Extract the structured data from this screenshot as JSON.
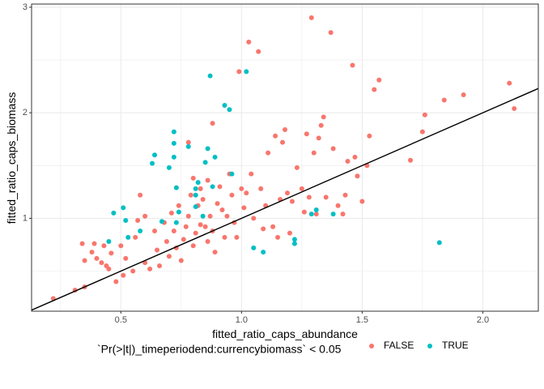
{
  "chart_data": {
    "type": "scatter",
    "xlabel": "fitted_ratio_caps_abundance",
    "ylabel": "fitted_ratio_caps_biomass",
    "xlim": [
      0.13,
      2.23
    ],
    "ylim": [
      0.12,
      3.03
    ],
    "x_ticks": [
      0.5,
      1.0,
      1.5,
      2.0
    ],
    "x_tick_labels": [
      "0.5",
      "1.0",
      "1.5",
      "2.0"
    ],
    "y_ticks": [
      1,
      2,
      3
    ],
    "y_tick_labels": [
      "1",
      "2",
      "3"
    ],
    "grid": true,
    "legend": {
      "title": "`Pr(>|t|)_timeperiodend:currencybiomass` < 0.05",
      "placement": "bottom",
      "entries": [
        {
          "label": "FALSE",
          "color": "#F8766D"
        },
        {
          "label": "TRUE",
          "color": "#00BFC4"
        }
      ]
    },
    "reference_line": {
      "intercept": 0,
      "slope": 1
    },
    "series": [
      {
        "name": "FALSE",
        "color": "#F8766D",
        "points": [
          [
            0.22,
            0.24
          ],
          [
            0.31,
            0.32
          ],
          [
            0.35,
            0.35
          ],
          [
            0.34,
            0.76
          ],
          [
            0.39,
            0.76
          ],
          [
            0.35,
            0.6
          ],
          [
            0.38,
            0.68
          ],
          [
            0.4,
            0.62
          ],
          [
            0.42,
            0.58
          ],
          [
            0.44,
            0.55
          ],
          [
            0.45,
            0.52
          ],
          [
            0.43,
            0.74
          ],
          [
            0.46,
            0.67
          ],
          [
            0.48,
            0.4
          ],
          [
            0.5,
            0.74
          ],
          [
            0.51,
            0.46
          ],
          [
            0.52,
            0.62
          ],
          [
            0.55,
            0.5
          ],
          [
            0.56,
            0.82
          ],
          [
            0.57,
            0.98
          ],
          [
            0.58,
            1.22
          ],
          [
            0.6,
            0.58
          ],
          [
            0.6,
            1.02
          ],
          [
            0.62,
            0.52
          ],
          [
            0.64,
            0.88
          ],
          [
            0.65,
            0.7
          ],
          [
            0.66,
            0.55
          ],
          [
            0.68,
            0.96
          ],
          [
            0.69,
            0.78
          ],
          [
            0.7,
            0.64
          ],
          [
            0.71,
            1.05
          ],
          [
            0.72,
            0.88
          ],
          [
            0.73,
            0.72
          ],
          [
            0.74,
            1.12
          ],
          [
            0.75,
            0.6
          ],
          [
            0.77,
            0.92
          ],
          [
            0.78,
            1.02
          ],
          [
            0.79,
            1.22
          ],
          [
            0.8,
            0.74
          ],
          [
            0.81,
            0.86
          ],
          [
            0.82,
            1.12
          ],
          [
            0.83,
            1.28
          ],
          [
            0.84,
            1.18
          ],
          [
            0.85,
            0.92
          ],
          [
            0.86,
            0.78
          ],
          [
            0.87,
            1.02
          ],
          [
            0.88,
            0.88
          ],
          [
            0.89,
            0.68
          ],
          [
            0.9,
            1.14
          ],
          [
            0.91,
            1.3
          ],
          [
            0.92,
            1.08
          ],
          [
            0.93,
            0.82
          ],
          [
            0.94,
            1.02
          ],
          [
            0.95,
            1.42
          ],
          [
            0.96,
            1.22
          ],
          [
            0.97,
            0.96
          ],
          [
            0.98,
            0.82
          ],
          [
            0.99,
            2.39
          ],
          [
            1.0,
            1.28
          ],
          [
            1.01,
            1.1
          ],
          [
            1.02,
            1.24
          ],
          [
            1.03,
            2.67
          ],
          [
            1.04,
            1.42
          ],
          [
            1.05,
            1.0
          ],
          [
            1.07,
            2.58
          ],
          [
            1.08,
            1.28
          ],
          [
            1.09,
            0.9
          ],
          [
            1.1,
            1.12
          ],
          [
            1.11,
            1.62
          ],
          [
            1.13,
            0.92
          ],
          [
            1.14,
            1.78
          ],
          [
            1.15,
            0.82
          ],
          [
            1.16,
            1.18
          ],
          [
            1.17,
            1.72
          ],
          [
            1.18,
            1.84
          ],
          [
            1.19,
            1.24
          ],
          [
            1.2,
            0.86
          ],
          [
            1.21,
            1.16
          ],
          [
            1.23,
            1.48
          ],
          [
            1.25,
            1.28
          ],
          [
            1.26,
            1.06
          ],
          [
            1.27,
            1.8
          ],
          [
            1.28,
            1.2
          ],
          [
            1.29,
            2.9
          ],
          [
            1.3,
            1.62
          ],
          [
            1.31,
            1.04
          ],
          [
            1.32,
            1.76
          ],
          [
            1.33,
            1.88
          ],
          [
            1.34,
            1.96
          ],
          [
            1.35,
            1.2
          ],
          [
            1.37,
            2.76
          ],
          [
            1.38,
            1.66
          ],
          [
            1.4,
            1.12
          ],
          [
            1.42,
            1.04
          ],
          [
            1.43,
            1.22
          ],
          [
            1.44,
            1.54
          ],
          [
            1.46,
            2.45
          ],
          [
            1.47,
            1.58
          ],
          [
            1.48,
            1.4
          ],
          [
            1.5,
            1.16
          ],
          [
            1.52,
            1.5
          ],
          [
            1.53,
            1.78
          ],
          [
            1.55,
            2.22
          ],
          [
            1.57,
            2.31
          ],
          [
            1.7,
            1.55
          ],
          [
            1.75,
            1.82
          ],
          [
            1.76,
            1.98
          ],
          [
            1.84,
            2.12
          ],
          [
            1.92,
            2.17
          ],
          [
            2.11,
            2.28
          ],
          [
            2.13,
            2.04
          ],
          [
            0.78,
            1.72
          ],
          [
            0.88,
            1.9
          ],
          [
            0.8,
            1.38
          ],
          [
            0.83,
            0.94
          ],
          [
            0.76,
            0.8
          ],
          [
            0.86,
            1.36
          ]
        ]
      },
      {
        "name": "TRUE",
        "color": "#00BFC4",
        "points": [
          [
            0.45,
            0.78
          ],
          [
            0.47,
            1.05
          ],
          [
            0.51,
            1.1
          ],
          [
            0.52,
            0.98
          ],
          [
            0.53,
            0.82
          ],
          [
            0.58,
            0.88
          ],
          [
            0.63,
            1.52
          ],
          [
            0.64,
            1.6
          ],
          [
            0.67,
            0.97
          ],
          [
            0.7,
            1.48
          ],
          [
            0.72,
            1.71
          ],
          [
            0.72,
            1.82
          ],
          [
            0.72,
            1.58
          ],
          [
            0.73,
            1.29
          ],
          [
            0.73,
            0.96
          ],
          [
            0.74,
            1.06
          ],
          [
            0.78,
            1.68
          ],
          [
            0.81,
            1.28
          ],
          [
            0.81,
            1.22
          ],
          [
            0.81,
            1.11
          ],
          [
            0.82,
            1.34
          ],
          [
            0.84,
            1.02
          ],
          [
            0.85,
            1.53
          ],
          [
            0.86,
            1.66
          ],
          [
            0.87,
            2.35
          ],
          [
            0.88,
            1.3
          ],
          [
            0.89,
            1.58
          ],
          [
            0.93,
            2.07
          ],
          [
            0.95,
            2.03
          ],
          [
            0.96,
            1.42
          ],
          [
            1.02,
            2.39
          ],
          [
            1.05,
            0.72
          ],
          [
            1.09,
            0.68
          ],
          [
            1.22,
            0.8
          ],
          [
            1.22,
            0.76
          ],
          [
            1.29,
            1.04
          ],
          [
            1.31,
            1.08
          ],
          [
            1.38,
            1.04
          ],
          [
            1.82,
            0.77
          ]
        ]
      }
    ]
  }
}
